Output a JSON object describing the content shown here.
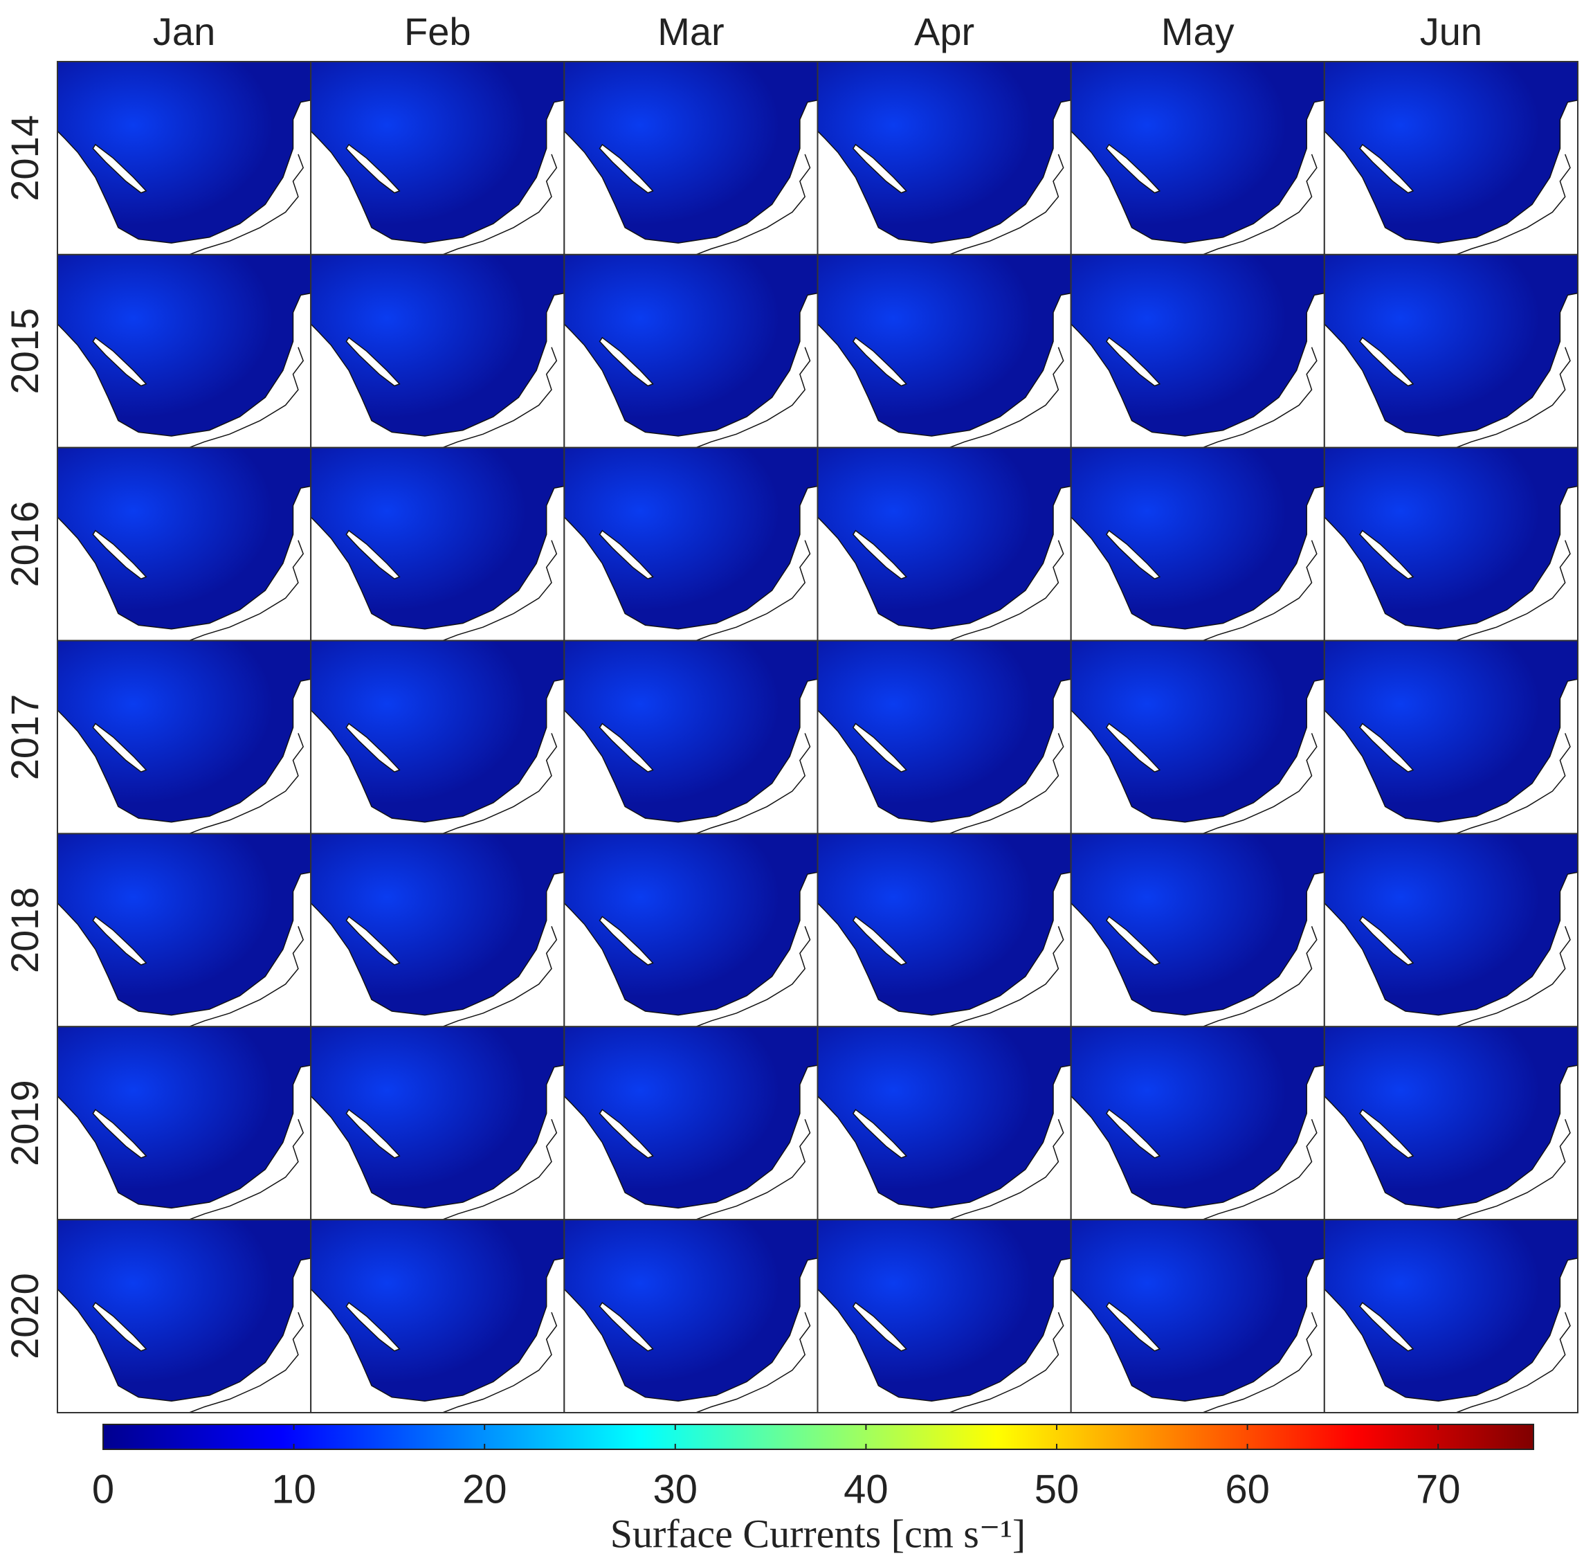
{
  "chart_data": {
    "type": "colorbar",
    "panel_columns": [
      "Jan",
      "Feb",
      "Mar",
      "Apr",
      "May",
      "Jun"
    ],
    "panel_rows": [
      "2014",
      "2015",
      "2016",
      "2017",
      "2018",
      "2019",
      "2020"
    ],
    "colormap": "jet",
    "xlim": [
      0,
      75
    ],
    "xticks": [
      0,
      10,
      20,
      30,
      40,
      50,
      60,
      70
    ],
    "xlabel": "Surface Currents [cm s⁻¹]"
  }
}
